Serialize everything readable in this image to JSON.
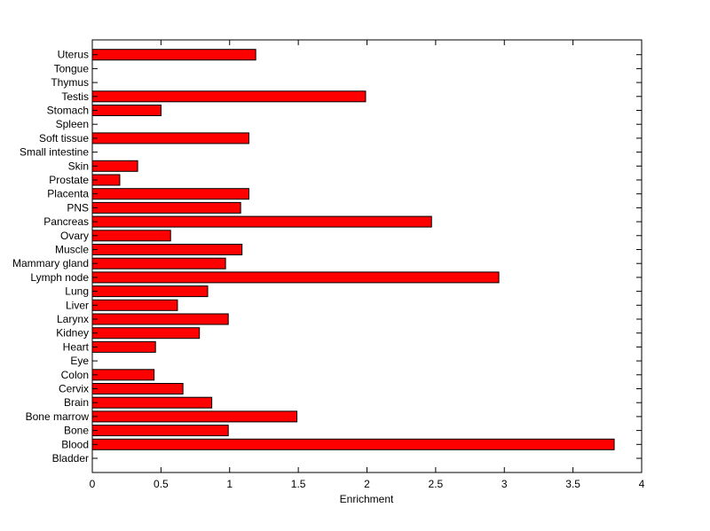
{
  "colors": {
    "bar_fill": "#ff0000",
    "bar_stroke": "#000000",
    "axis": "#000000",
    "background": "#ffffff"
  },
  "chart_data": {
    "type": "bar",
    "orientation": "horizontal",
    "title": "",
    "xlabel": "Enrichment",
    "ylabel": "",
    "xlim": [
      0,
      4
    ],
    "xticks": [
      "0",
      "0.5",
      "1",
      "1.5",
      "2",
      "2.5",
      "3",
      "3.5",
      "4"
    ],
    "grid": false,
    "legend": "none",
    "categories": [
      "Bladder",
      "Blood",
      "Bone",
      "Bone marrow",
      "Brain",
      "Cervix",
      "Colon",
      "Eye",
      "Heart",
      "Kidney",
      "Larynx",
      "Liver",
      "Lung",
      "Lymph node",
      "Mammary gland",
      "Muscle",
      "Ovary",
      "Pancreas",
      "PNS",
      "Placenta",
      "Prostate",
      "Skin",
      "Small intestine",
      "Soft tissue",
      "Spleen",
      "Stomach",
      "Testis",
      "Thymus",
      "Tongue",
      "Uterus"
    ],
    "values": [
      0,
      3.8,
      0.99,
      1.49,
      0.87,
      0.66,
      0.45,
      0,
      0.46,
      0.78,
      0.99,
      0.62,
      0.84,
      2.96,
      0.97,
      1.09,
      0.57,
      2.47,
      1.08,
      1.14,
      0.2,
      0.33,
      0,
      1.14,
      0,
      0.5,
      1.99,
      0,
      0,
      1.19
    ]
  }
}
